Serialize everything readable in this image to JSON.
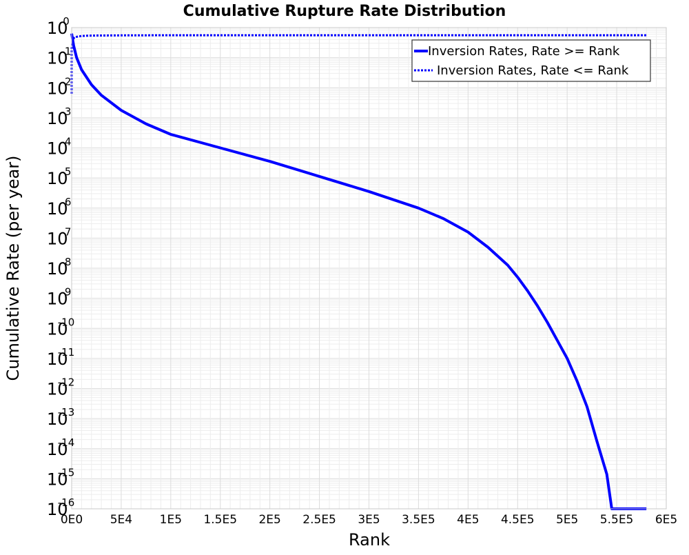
{
  "chart_data": {
    "type": "line",
    "title": "Cumulative Rupture Rate Distribution",
    "xlabel": "Rank",
    "ylabel": "Cumulative Rate (per year)",
    "xscale": "linear",
    "yscale": "log",
    "xlim": [
      0,
      600000
    ],
    "ylim_exponents": [
      -16,
      0
    ],
    "x_ticks": [
      0,
      50000,
      100000,
      150000,
      200000,
      250000,
      300000,
      350000,
      400000,
      450000,
      500000,
      550000,
      600000
    ],
    "x_tick_labels": [
      "0E0",
      "5E4",
      "1E5",
      "1.5E5",
      "2E5",
      "2.5E5",
      "3E5",
      "3.5E5",
      "4E5",
      "4.5E5",
      "5E5",
      "5.5E5",
      "6E5"
    ],
    "y_tick_base": "10",
    "y_tick_exponents": [
      "0",
      "-1",
      "-2",
      "-3",
      "-4",
      "-5",
      "-6",
      "-7",
      "-8",
      "-9",
      "-10",
      "-11",
      "-12",
      "-13",
      "-14",
      "-15",
      "-16"
    ],
    "grid": true,
    "legend_position": "top-right",
    "series": [
      {
        "name": "Inversion Rates, Rate >= Rank",
        "style": "solid",
        "color": "#0000ff",
        "x": [
          0,
          2000,
          5000,
          10000,
          20000,
          30000,
          50000,
          75000,
          100000,
          150000,
          200000,
          250000,
          300000,
          350000,
          375000,
          400000,
          420000,
          440000,
          450000,
          460000,
          470000,
          480000,
          490000,
          500000,
          510000,
          520000,
          530000,
          540000,
          545000,
          580000
        ],
        "log10_y": [
          -0.2,
          -0.6,
          -1.0,
          -1.4,
          -1.9,
          -2.25,
          -2.75,
          -3.2,
          -3.55,
          -4.0,
          -4.45,
          -4.95,
          -5.45,
          -6.0,
          -6.35,
          -6.8,
          -7.3,
          -7.9,
          -8.3,
          -8.75,
          -9.25,
          -9.8,
          -10.4,
          -11.0,
          -11.75,
          -12.6,
          -13.75,
          -14.85,
          -16.0,
          -16.0
        ]
      },
      {
        "name": "Inversion Rates, Rate <= Rank",
        "style": "dotted",
        "color": "#0000ff",
        "x": [
          0,
          0,
          1000,
          3000,
          6000,
          10000,
          20000,
          50000,
          100000,
          300000,
          580000
        ],
        "log10_y": [
          -2.2,
          -0.7,
          -0.4,
          -0.32,
          -0.3,
          -0.28,
          -0.265,
          -0.26,
          -0.255,
          -0.255,
          -0.255
        ]
      }
    ]
  }
}
